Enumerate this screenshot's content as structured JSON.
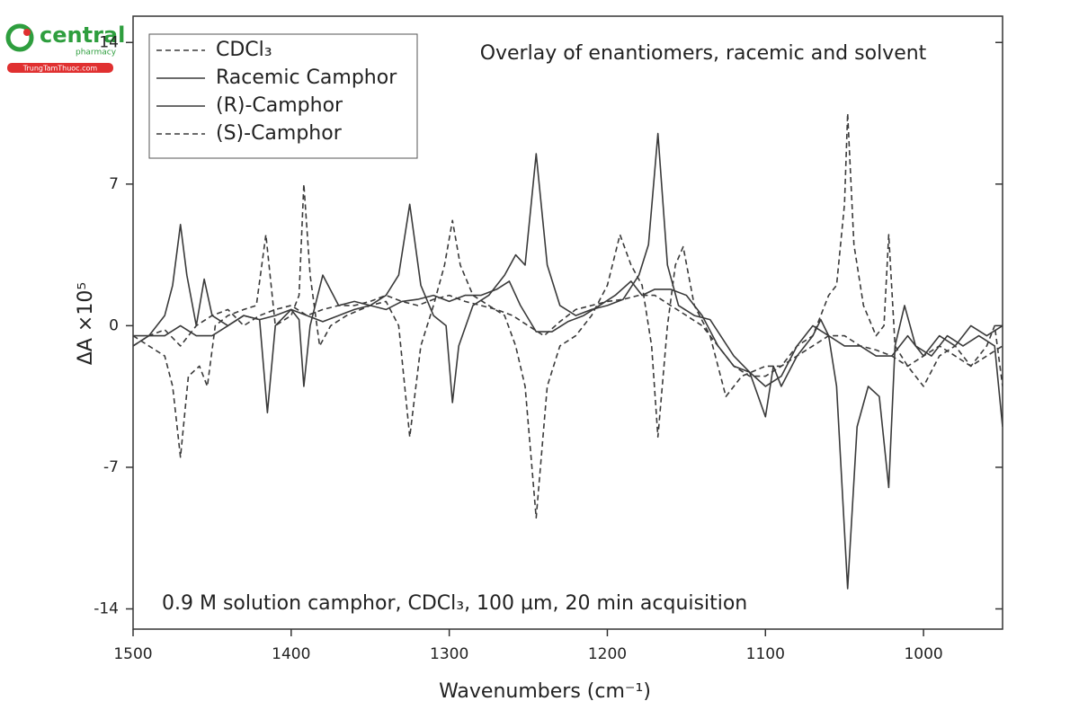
{
  "watermark": {
    "brand": "central",
    "sub": "pharmacy",
    "site": "TrungTamThuoc.com"
  },
  "chart_data": {
    "type": "line",
    "title": "Overlay of enantiomers, racemic and solvent",
    "annotation": "0.9 M solution camphor, CDCl₃, 100 µm, 20 min acquisition",
    "x_label": "Wavenumbers (cm⁻¹)",
    "y_label": "ΔA ×10⁵",
    "xlim": [
      1500,
      950
    ],
    "xticks": [
      1500,
      1400,
      1300,
      1200,
      1100,
      1000
    ],
    "ylim": [
      -15,
      15.3
    ],
    "yticks": [
      -14,
      -7,
      0,
      7,
      14
    ],
    "legend": "top-left",
    "series": [
      {
        "name": "CDCl₃",
        "color": "#3a3a3a",
        "dash": "dashed",
        "x": [
          1500,
          1490,
          1480,
          1470,
          1460,
          1450,
          1440,
          1430,
          1420,
          1410,
          1400,
          1390,
          1380,
          1370,
          1360,
          1350,
          1340,
          1330,
          1320,
          1310,
          1300,
          1290,
          1280,
          1270,
          1260,
          1250,
          1240,
          1230,
          1220,
          1210,
          1200,
          1190,
          1180,
          1170,
          1160,
          1150,
          1140,
          1130,
          1120,
          1110,
          1100,
          1090,
          1080,
          1070,
          1060,
          1050,
          1040,
          1030,
          1020,
          1010,
          1000,
          990,
          980,
          970,
          960,
          950
        ],
        "values": [
          -1,
          -0.5,
          -0.2,
          -1,
          0,
          0.5,
          0.8,
          0,
          0.5,
          0.8,
          1,
          0.5,
          0.8,
          1,
          1,
          1.2,
          1.5,
          1.2,
          1,
          1.3,
          1.5,
          1.2,
          1,
          0.8,
          0.5,
          0,
          -0.5,
          0.2,
          0.8,
          1,
          1.2,
          1.3,
          1.5,
          1.5,
          1,
          0.5,
          0,
          -1,
          -2,
          -2.5,
          -2.5,
          -2,
          -1.5,
          -1,
          -0.5,
          -0.5,
          -1,
          -1.2,
          -1.5,
          -2,
          -1.5,
          -1,
          -1.5,
          -2,
          -1.5,
          -1
        ]
      },
      {
        "name": "Racemic Camphor",
        "color": "#3a3a3a",
        "dash": "solid",
        "x": [
          1500,
          1480,
          1470,
          1460,
          1450,
          1440,
          1430,
          1420,
          1410,
          1400,
          1390,
          1380,
          1370,
          1360,
          1350,
          1340,
          1330,
          1320,
          1310,
          1300,
          1290,
          1280,
          1270,
          1262,
          1255,
          1245,
          1235,
          1225,
          1215,
          1205,
          1195,
          1185,
          1178,
          1170,
          1160,
          1150,
          1140,
          1130,
          1120,
          1110,
          1100,
          1095,
          1090,
          1080,
          1070,
          1065,
          1060,
          1050,
          1040,
          1030,
          1020,
          1010,
          1000,
          990,
          980,
          970,
          960,
          950
        ],
        "values": [
          -0.5,
          -0.5,
          0,
          -0.5,
          -0.5,
          0,
          0.5,
          0.3,
          0.5,
          0.8,
          0.5,
          0.2,
          0.5,
          0.8,
          1,
          0.8,
          1.2,
          1.3,
          1.5,
          1.2,
          1.5,
          1.5,
          1.8,
          2.2,
          1,
          -0.3,
          -0.3,
          0.2,
          0.5,
          1,
          1.5,
          2.2,
          1.5,
          1.8,
          1.8,
          1.5,
          0.5,
          -1,
          -2,
          -2.3,
          -4.5,
          -2,
          -3,
          -1.5,
          -0.5,
          0.3,
          -0.5,
          -1,
          -1,
          -1.5,
          -1.5,
          -0.5,
          -1.5,
          -0.5,
          -1,
          0,
          -0.5,
          0
        ]
      },
      {
        "name": "(R)-Camphor",
        "color": "#3a3a3a",
        "dash": "solid",
        "x": [
          1500,
          1490,
          1480,
          1475,
          1470,
          1466,
          1460,
          1455,
          1450,
          1440,
          1430,
          1420,
          1415,
          1410,
          1400,
          1395,
          1392,
          1388,
          1380,
          1370,
          1360,
          1350,
          1340,
          1332,
          1325,
          1318,
          1310,
          1302,
          1298,
          1294,
          1285,
          1275,
          1265,
          1258,
          1252,
          1245,
          1238,
          1230,
          1220,
          1210,
          1200,
          1190,
          1180,
          1174,
          1168,
          1162,
          1155,
          1145,
          1135,
          1120,
          1110,
          1100,
          1090,
          1080,
          1070,
          1060,
          1055,
          1048,
          1042,
          1035,
          1028,
          1022,
          1018,
          1012,
          1005,
          995,
          985,
          975,
          965,
          955,
          950
        ],
        "values": [
          -1,
          -0.5,
          0.5,
          2,
          5,
          2.5,
          0,
          2.3,
          0.5,
          0,
          0.5,
          0.3,
          -4.3,
          0,
          0.8,
          0.3,
          -3,
          0,
          2.5,
          1,
          1.2,
          1,
          1.5,
          2.5,
          6,
          2,
          0.5,
          0,
          -3.8,
          -1,
          1,
          1.5,
          2.5,
          3.5,
          3,
          8.5,
          3,
          1,
          0.5,
          0.8,
          1,
          1.3,
          2.5,
          4,
          9.5,
          3,
          1,
          0.5,
          0.3,
          -1.5,
          -2.3,
          -3,
          -2.5,
          -1,
          0,
          -0.5,
          -3,
          -13,
          -5,
          -3,
          -3.5,
          -8,
          -1,
          1,
          -1,
          -1.5,
          -0.5,
          -1,
          -0.5,
          -1,
          -5
        ]
      },
      {
        "name": "(S)-Camphor",
        "color": "#3a3a3a",
        "dash": "dashed",
        "x": [
          1500,
          1490,
          1480,
          1475,
          1470,
          1465,
          1458,
          1453,
          1448,
          1440,
          1430,
          1422,
          1416,
          1410,
          1400,
          1395,
          1392,
          1388,
          1382,
          1375,
          1365,
          1350,
          1340,
          1332,
          1325,
          1318,
          1310,
          1303,
          1298,
          1293,
          1285,
          1275,
          1265,
          1258,
          1252,
          1245,
          1238,
          1230,
          1220,
          1210,
          1200,
          1192,
          1185,
          1178,
          1172,
          1168,
          1162,
          1157,
          1152,
          1145,
          1135,
          1125,
          1115,
          1100,
          1090,
          1080,
          1070,
          1060,
          1055,
          1050,
          1048,
          1044,
          1038,
          1030,
          1025,
          1022,
          1018,
          1010,
          1000,
          990,
          980,
          970,
          960,
          955,
          950
        ],
        "values": [
          -0.5,
          -1,
          -1.5,
          -3,
          -6.5,
          -2.5,
          -2,
          -3,
          0,
          0.5,
          0.8,
          1,
          4.5,
          0,
          0.5,
          1.5,
          7,
          2.5,
          -1,
          0,
          0.5,
          1,
          1.2,
          0,
          -5.5,
          -1,
          1,
          3,
          5.2,
          3,
          1.5,
          1,
          0.5,
          -1,
          -3,
          -9.5,
          -3,
          -1,
          -0.5,
          0.5,
          2,
          4.5,
          3,
          2,
          -1,
          -5.5,
          0,
          3,
          3.9,
          1,
          -0.5,
          -3.5,
          -2.5,
          -2,
          -2,
          -1,
          -0.5,
          1.5,
          2,
          6,
          10.5,
          4,
          1,
          -0.5,
          0,
          4.5,
          -1,
          -2,
          -3,
          -1.5,
          -1,
          -2,
          -1,
          0,
          -3
        ]
      }
    ]
  }
}
